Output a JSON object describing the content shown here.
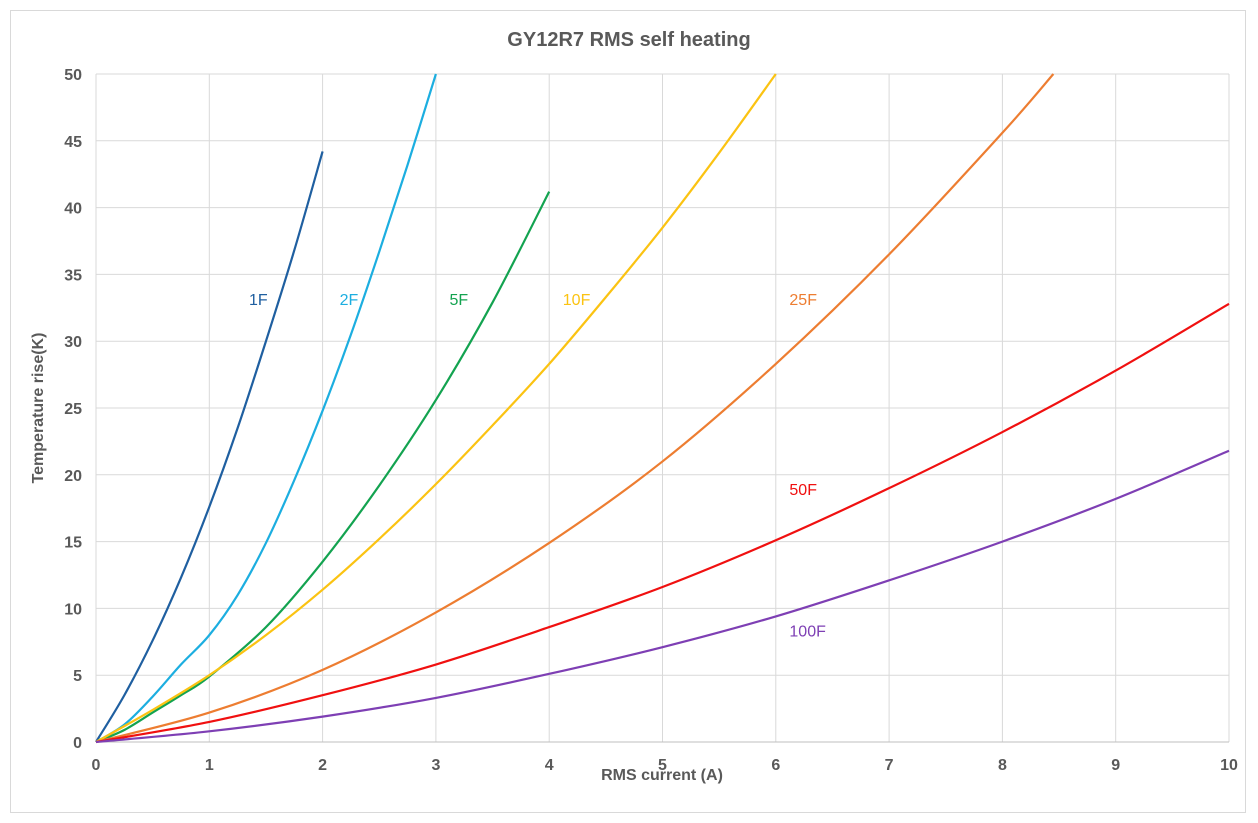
{
  "chart_data": {
    "type": "line",
    "title": "GY12R7 RMS self heating",
    "xlabel": "RMS current (A)",
    "ylabel": "Temperature rise(K)",
    "xlim": [
      0,
      10
    ],
    "ylim": [
      0,
      50
    ],
    "x_ticks": [
      0,
      1,
      2,
      3,
      4,
      5,
      6,
      7,
      8,
      9,
      10
    ],
    "y_ticks": [
      0,
      5,
      10,
      15,
      20,
      25,
      30,
      35,
      40,
      45,
      50
    ],
    "grid": true,
    "legend": "none",
    "series": [
      {
        "name": "1F",
        "color": "#1f5fa0",
        "label_at": [
          1.35,
          32.7
        ],
        "points": [
          [
            0,
            0
          ],
          [
            0.25,
            3.5
          ],
          [
            0.5,
            7.6
          ],
          [
            0.75,
            12.3
          ],
          [
            1.0,
            17.6
          ],
          [
            1.25,
            23.5
          ],
          [
            1.5,
            30.0
          ],
          [
            1.75,
            36.8
          ],
          [
            2.0,
            44.2
          ]
        ]
      },
      {
        "name": "2F",
        "color": "#1caee0",
        "label_at": [
          2.15,
          32.7
        ],
        "points": [
          [
            0,
            0
          ],
          [
            0.25,
            1.3
          ],
          [
            0.5,
            3.4
          ],
          [
            0.75,
            5.8
          ],
          [
            1.0,
            8.0
          ],
          [
            1.25,
            11.0
          ],
          [
            1.5,
            14.9
          ],
          [
            1.75,
            19.6
          ],
          [
            2.0,
            24.8
          ],
          [
            2.25,
            30.5
          ],
          [
            2.5,
            36.7
          ],
          [
            2.75,
            43.2
          ],
          [
            3.0,
            50.0
          ]
        ]
      },
      {
        "name": "5F",
        "color": "#13a350",
        "label_at": [
          3.12,
          32.7
        ],
        "points": [
          [
            0,
            0
          ],
          [
            0.25,
            0.9
          ],
          [
            0.5,
            2.2
          ],
          [
            0.75,
            3.5
          ],
          [
            1.0,
            4.9
          ],
          [
            1.5,
            8.6
          ],
          [
            2.0,
            13.5
          ],
          [
            2.5,
            19.2
          ],
          [
            3.0,
            25.6
          ],
          [
            3.5,
            32.9
          ],
          [
            4.0,
            41.2
          ]
        ]
      },
      {
        "name": "10F",
        "color": "#fbc312",
        "label_at": [
          4.12,
          32.7
        ],
        "points": [
          [
            0,
            0
          ],
          [
            0.5,
            2.4
          ],
          [
            1.0,
            5.0
          ],
          [
            1.5,
            8.0
          ],
          [
            2.0,
            11.4
          ],
          [
            2.5,
            15.2
          ],
          [
            3.0,
            19.3
          ],
          [
            3.5,
            23.7
          ],
          [
            4.0,
            28.3
          ],
          [
            4.5,
            33.3
          ],
          [
            5.0,
            38.5
          ],
          [
            5.5,
            44.1
          ],
          [
            6.0,
            50.0
          ]
        ]
      },
      {
        "name": "25F",
        "color": "#ed7d31",
        "label_at": [
          6.12,
          32.7
        ],
        "points": [
          [
            0,
            0
          ],
          [
            1.0,
            2.2
          ],
          [
            2.0,
            5.4
          ],
          [
            3.0,
            9.7
          ],
          [
            4.0,
            14.9
          ],
          [
            5.0,
            21.0
          ],
          [
            6.0,
            28.3
          ],
          [
            7.0,
            36.5
          ],
          [
            8.0,
            45.6
          ],
          [
            8.45,
            50.0
          ]
        ]
      },
      {
        "name": "50F",
        "color": "#f01010",
        "label_at": [
          6.12,
          18.5
        ],
        "points": [
          [
            0,
            0
          ],
          [
            1.0,
            1.5
          ],
          [
            2.0,
            3.5
          ],
          [
            3.0,
            5.8
          ],
          [
            4.0,
            8.6
          ],
          [
            5.0,
            11.6
          ],
          [
            6.0,
            15.1
          ],
          [
            7.0,
            19.0
          ],
          [
            8.0,
            23.2
          ],
          [
            9.0,
            27.8
          ],
          [
            10.0,
            32.8
          ]
        ]
      },
      {
        "name": "100F",
        "color": "#7e3fb4",
        "label_at": [
          6.12,
          7.9
        ],
        "points": [
          [
            0,
            0
          ],
          [
            1.0,
            0.8
          ],
          [
            2.0,
            1.9
          ],
          [
            3.0,
            3.3
          ],
          [
            4.0,
            5.1
          ],
          [
            5.0,
            7.1
          ],
          [
            6.0,
            9.4
          ],
          [
            7.0,
            12.1
          ],
          [
            8.0,
            15.0
          ],
          [
            9.0,
            18.2
          ],
          [
            10.0,
            21.8
          ]
        ]
      }
    ]
  }
}
